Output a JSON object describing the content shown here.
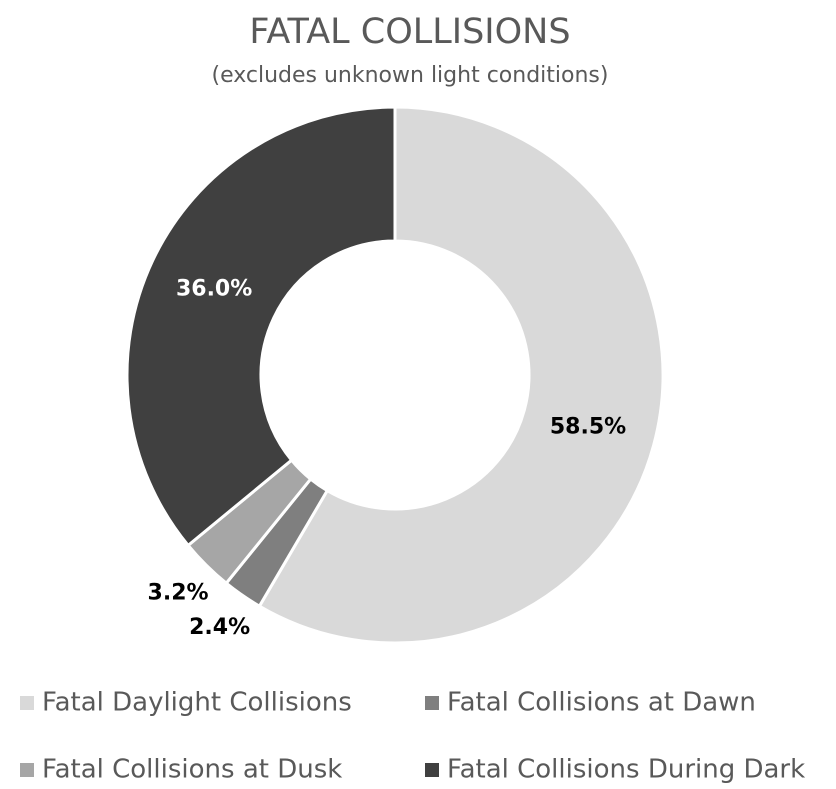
{
  "chart_data": {
    "type": "donut",
    "title": "FATAL COLLISIONS",
    "subtitle": "(excludes unknown light conditions)",
    "categories": [
      "Fatal Daylight Collisions",
      "Fatal Collisions at Dawn",
      "Fatal Collisions at Dusk",
      "Fatal Collisions During Dark"
    ],
    "values": [
      58.5,
      2.4,
      3.2,
      36.0
    ],
    "value_labels": [
      "58.5%",
      "2.4%",
      "3.2%",
      "36.0%"
    ],
    "colors": [
      "#d9d9d9",
      "#7f7f7f",
      "#a6a6a6",
      "#404040"
    ],
    "legend": "bottom"
  }
}
